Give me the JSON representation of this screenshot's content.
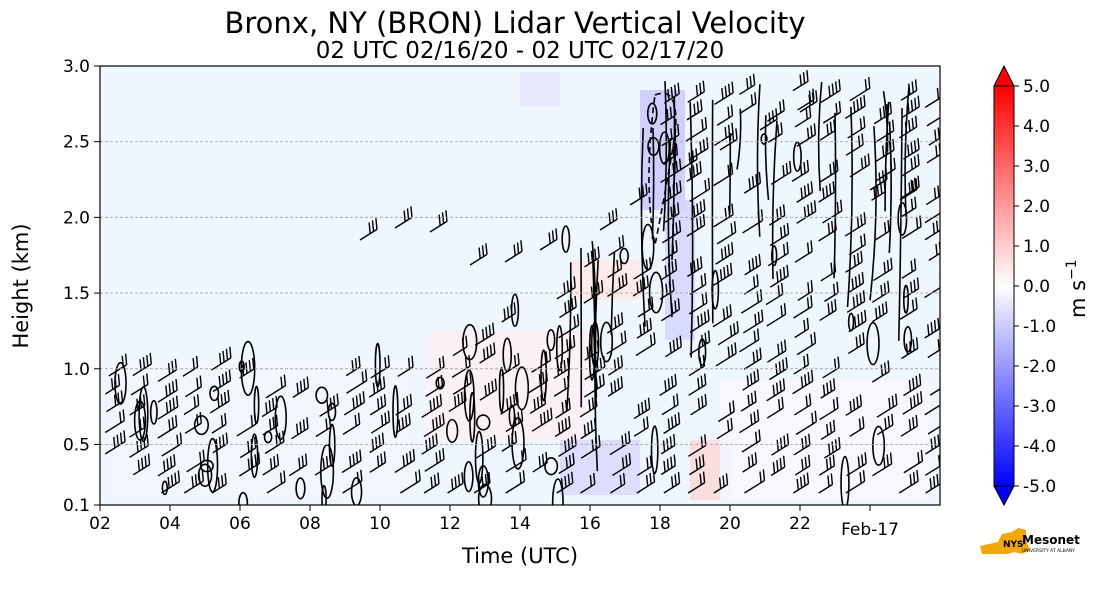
{
  "chart_data": {
    "type": "heatmap",
    "title": "Bronx, NY (BRON) Lidar Vertical Velocity",
    "subtitle": "02 UTC 02/16/20 - 02 UTC 02/17/20",
    "xlabel": "Time (UTC)",
    "ylabel": "Height (km)",
    "x_ticks": [
      "02",
      "04",
      "06",
      "08",
      "10",
      "12",
      "14",
      "16",
      "18",
      "20",
      "22",
      "Feb-17"
    ],
    "y_ticks": [
      "0.1",
      "0.5",
      "1.0",
      "1.5",
      "2.0",
      "2.5",
      "3.0"
    ],
    "ylim": [
      0.1,
      3.0
    ],
    "grid": "horizontal dashed",
    "colorbar": {
      "label": "m s",
      "label_exponent": "−1",
      "min": -5.0,
      "max": 5.0,
      "ticks": [
        "5.0",
        "4.0",
        "3.0",
        "2.0",
        "1.0",
        "0.0",
        "-1.0",
        "-2.0",
        "-3.0",
        "-4.0",
        "-5.0"
      ],
      "colormap": "bwr",
      "extend": "both",
      "colors": {
        "max": "#ff0000",
        "mid": "#ffffff",
        "min": "#0000ff"
      }
    },
    "overlays": [
      "vertical velocity contours (black)",
      "wind barbs"
    ],
    "background_color": "#eef6ff"
  },
  "logo": {
    "text": "NYS Mesonet",
    "subtext": "UNIVERSITY AT ALBANY",
    "colors": {
      "state": "#f0a800",
      "text": "#4b2e83"
    }
  }
}
